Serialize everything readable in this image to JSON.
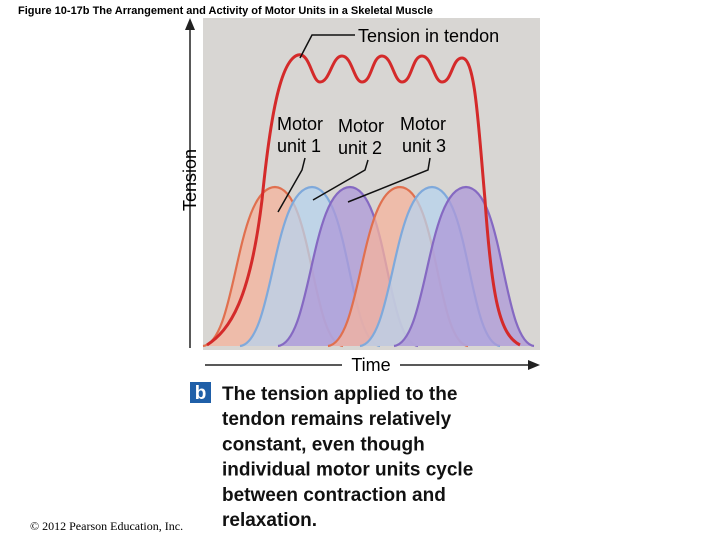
{
  "header": {
    "title": "Figure 10-17b  The Arrangement and Activity of Motor Units in a Skeletal Muscle"
  },
  "plot": {
    "y_axis_label": "Tension",
    "x_axis_label": "Time",
    "annotation": "Tension in tendon",
    "motor_units": [
      {
        "line1": "Motor",
        "line2": "unit 1"
      },
      {
        "line1": "Motor",
        "line2": "unit 2"
      },
      {
        "line1": "Motor",
        "line2": "unit 3"
      }
    ]
  },
  "panel_letter": "b",
  "caption": [
    "The tension applied to the",
    "tendon remains relatively",
    "constant, even though",
    "individual motor units cycle",
    "between contraction and",
    "relaxation."
  ],
  "copyright": "© 2012 Pearson Education, Inc."
}
